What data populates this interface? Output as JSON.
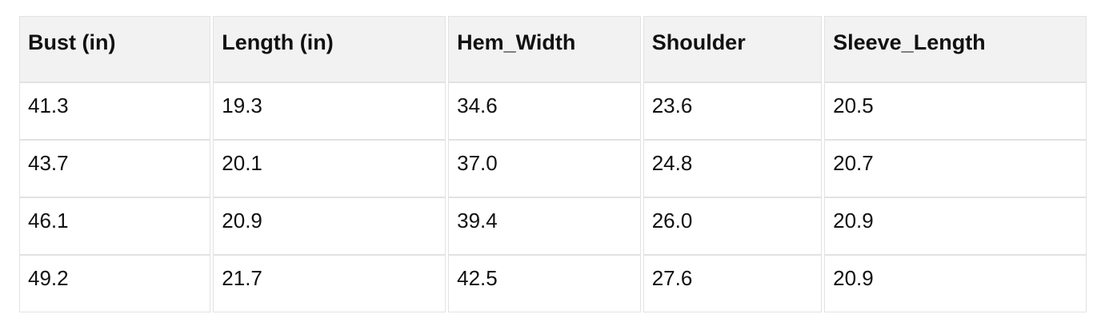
{
  "chart_data": {
    "type": "table",
    "title": "",
    "columns": [
      "Bust (in)",
      "Length (in)",
      "Hem_Width",
      "Shoulder",
      "Sleeve_Length"
    ],
    "rows": [
      [
        "41.3",
        "19.3",
        "34.6",
        "23.6",
        "20.5"
      ],
      [
        "43.7",
        "20.1",
        "37.0",
        "24.8",
        "20.7"
      ],
      [
        "46.1",
        "20.9",
        "39.4",
        "26.0",
        "20.9"
      ],
      [
        "49.2",
        "21.7",
        "42.5",
        "27.6",
        "20.9"
      ]
    ]
  },
  "colors": {
    "header_bg": "#f2f2f2",
    "border": "#e2e2e2",
    "text": "#111111",
    "page_bg": "#ffffff"
  }
}
